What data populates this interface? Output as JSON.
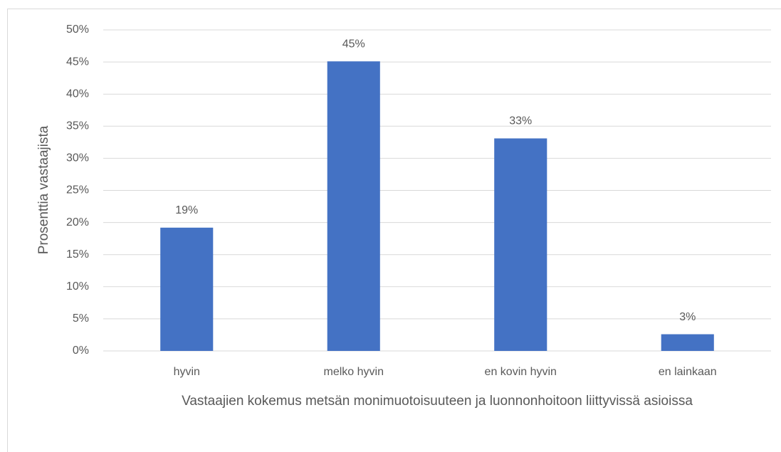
{
  "chart_data": {
    "type": "bar",
    "y_label": "Prosenttia vastaajista",
    "x_label": "Vastaajien kokemus metsän monimuotoisuuteen ja luonnonhoitoon liittyvissä asioissa",
    "categories": [
      "hyvin",
      "melko hyvin",
      "en kovin hyvin",
      "en lainkaan"
    ],
    "values": [
      19.2,
      45.1,
      33.1,
      2.6
    ],
    "value_labels": [
      "19%",
      "45%",
      "33%",
      "3%"
    ],
    "color": "#4472c4",
    "ylim": [
      0,
      50
    ],
    "yticks": [
      {
        "value": 0,
        "label": "0%"
      },
      {
        "value": 5,
        "label": "5%"
      },
      {
        "value": 10,
        "label": "10%"
      },
      {
        "value": 15,
        "label": "15%"
      },
      {
        "value": 20,
        "label": "20%"
      },
      {
        "value": 25,
        "label": "25%"
      },
      {
        "value": 30,
        "label": "30%"
      },
      {
        "value": 35,
        "label": "35%"
      },
      {
        "value": 40,
        "label": "40%"
      },
      {
        "value": 45,
        "label": "45%"
      },
      {
        "value": 50,
        "label": "50%"
      }
    ],
    "grid": true
  }
}
